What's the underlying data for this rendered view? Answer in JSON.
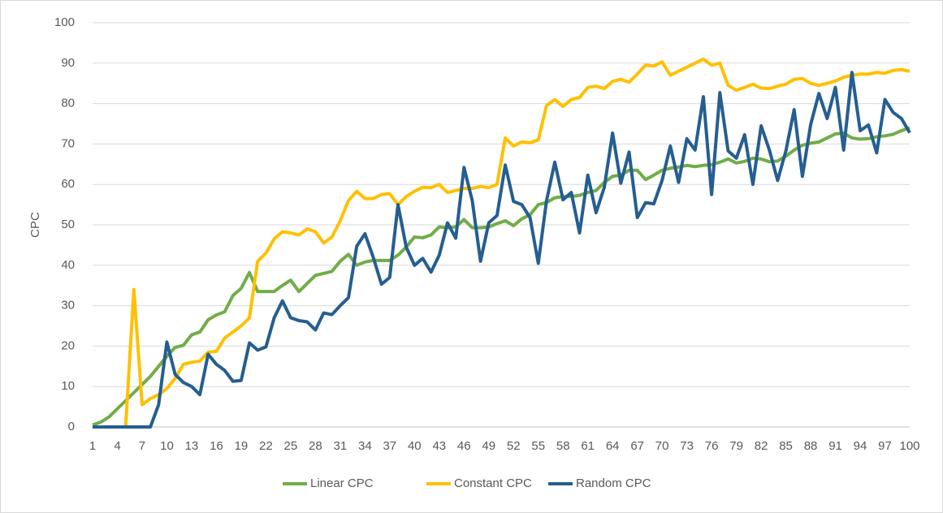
{
  "chart_data": {
    "type": "line",
    "y_label": "CPC",
    "x": [
      1,
      2,
      3,
      4,
      5,
      6,
      7,
      8,
      9,
      10,
      11,
      12,
      13,
      14,
      15,
      16,
      17,
      18,
      19,
      20,
      21,
      22,
      23,
      24,
      25,
      26,
      27,
      28,
      29,
      30,
      31,
      32,
      33,
      34,
      35,
      36,
      37,
      38,
      39,
      40,
      41,
      42,
      43,
      44,
      45,
      46,
      47,
      48,
      49,
      50,
      51,
      52,
      53,
      54,
      55,
      56,
      57,
      58,
      59,
      60,
      61,
      62,
      63,
      64,
      65,
      66,
      67,
      68,
      69,
      70,
      71,
      72,
      73,
      74,
      75,
      76,
      77,
      78,
      79,
      80,
      81,
      82,
      83,
      84,
      85,
      86,
      87,
      88,
      89,
      90,
      91,
      92,
      93,
      94,
      95,
      96,
      97,
      98,
      99,
      100
    ],
    "xlim": [
      1,
      100
    ],
    "xticks": [
      1,
      4,
      7,
      10,
      13,
      16,
      19,
      22,
      25,
      28,
      31,
      34,
      37,
      40,
      43,
      46,
      49,
      52,
      55,
      58,
      61,
      64,
      67,
      70,
      73,
      76,
      79,
      82,
      85,
      88,
      91,
      94,
      97,
      100
    ],
    "ylim": [
      0,
      100
    ],
    "yticks": [
      0,
      10,
      20,
      30,
      40,
      50,
      60,
      70,
      80,
      90,
      100
    ],
    "grid": true,
    "legend": "bottom",
    "series": [
      {
        "name": "Linear CPC",
        "color": "#70ad47",
        "values": [
          0.5,
          1.2,
          2.5,
          4.5,
          6.5,
          8.5,
          10.5,
          12.5,
          15,
          17.5,
          19.7,
          20.2,
          22.8,
          23.5,
          26.5,
          27.7,
          28.5,
          32.5,
          34.3,
          38.2,
          33.5,
          33.5,
          33.5,
          35,
          36.3,
          33.5,
          35.5,
          37.5,
          38,
          38.5,
          41,
          42.7,
          40,
          40.8,
          41.2,
          41.2,
          41.2,
          42.5,
          44.5,
          47,
          46.8,
          47.5,
          49.5,
          49.3,
          49.5,
          51.3,
          49.3,
          49.3,
          49.5,
          50.3,
          51,
          49.8,
          51.5,
          52.5,
          55,
          55.5,
          56.7,
          57,
          57,
          57.3,
          58,
          58.5,
          60.5,
          62,
          62.3,
          63.5,
          63.5,
          61.2,
          62.3,
          63.5,
          64,
          64.3,
          64.7,
          64.4,
          64.7,
          64.9,
          65.5,
          66.3,
          65.3,
          65.7,
          66.5,
          66.3,
          65.6,
          65.8,
          67,
          68.5,
          69.7,
          70.2,
          70.5,
          71.5,
          72.5,
          72.7,
          71.5,
          71.2,
          71.3,
          71.8,
          72,
          72.4,
          73.3,
          74
        ]
      },
      {
        "name": "Constant CPC",
        "color": "#ffc000",
        "values": [
          0,
          0,
          0,
          0,
          0,
          34,
          5.5,
          7,
          8,
          9.5,
          12,
          15.5,
          16,
          16.3,
          18.5,
          18.7,
          22,
          23.5,
          25,
          27,
          41,
          43,
          46.5,
          48.3,
          48,
          47.5,
          49,
          48.3,
          45.5,
          47,
          51,
          56,
          58.3,
          56.5,
          56.5,
          57.5,
          57.7,
          55,
          57,
          58.3,
          59.3,
          59.2,
          60,
          58,
          58.5,
          59,
          59,
          59.5,
          59.2,
          60,
          71.5,
          69.5,
          70.5,
          70.3,
          71,
          79.5,
          81,
          79.3,
          81,
          81.5,
          84,
          84.3,
          83.7,
          85.5,
          86,
          85.3,
          87.3,
          89.5,
          89.3,
          90.3,
          87,
          88,
          89,
          90,
          91,
          89.5,
          90,
          84.5,
          83.3,
          84,
          84.8,
          83.8,
          83.7,
          84.3,
          84.8,
          86,
          86.2,
          85,
          84.5,
          85,
          85.6,
          86.5,
          87,
          87.3,
          87.3,
          87.7,
          87.5,
          88.2,
          88.4,
          88
        ]
      },
      {
        "name": "Random CPC",
        "color": "#255e91",
        "values": [
          0,
          0,
          0,
          0,
          0,
          0,
          0,
          0,
          5.5,
          21,
          13,
          11,
          10,
          8,
          18,
          15.5,
          14,
          11.3,
          11.5,
          20.8,
          19,
          19.8,
          27,
          31.2,
          27,
          26.3,
          26,
          24,
          28.2,
          27.8,
          30,
          32,
          44.7,
          47.8,
          42,
          35.3,
          37,
          55,
          44.5,
          40,
          41.7,
          38.3,
          42.5,
          50.5,
          46.7,
          64.2,
          56,
          41,
          50.5,
          52.3,
          64.8,
          55.8,
          55,
          51.8,
          40.5,
          56,
          65.5,
          56.2,
          58,
          48,
          62.3,
          53,
          59.3,
          72.7,
          60.3,
          68,
          51.8,
          55.5,
          55.2,
          61,
          69.5,
          60.5,
          71.3,
          68.5,
          81.7,
          57.5,
          82.7,
          68.3,
          66.5,
          72.3,
          60,
          74.5,
          68.5,
          61,
          68.3,
          78.5,
          62,
          74.8,
          82.5,
          76.3,
          84,
          68.5,
          87.7,
          73.3,
          74.7,
          67.8,
          81,
          77.8,
          76.3,
          72.8
        ]
      }
    ]
  }
}
